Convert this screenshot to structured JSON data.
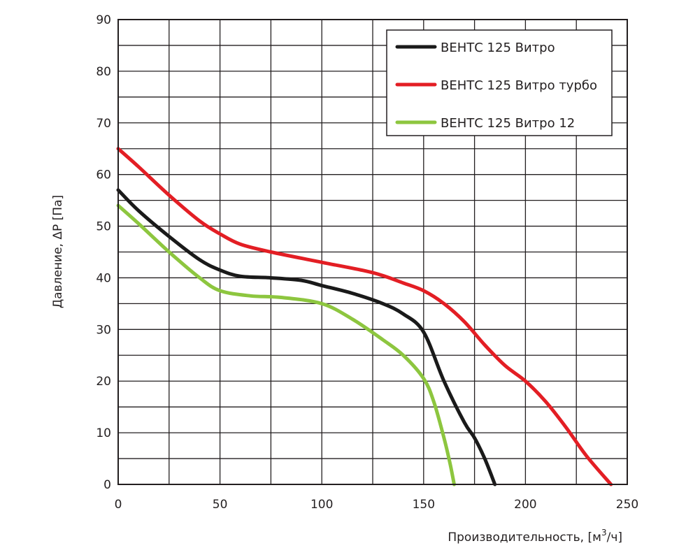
{
  "chart_data": {
    "type": "line",
    "title": "",
    "xlabel": "Производительность, [м",
    "xlabel_sup": "3",
    "xlabel_suffix": "/ч]",
    "ylabel": "Давление, ΔP [Па]",
    "xlim": [
      0,
      250
    ],
    "ylim": [
      0,
      90
    ],
    "x_ticks": [
      0,
      50,
      100,
      150,
      200,
      250
    ],
    "y_ticks": [
      0,
      10,
      20,
      30,
      40,
      50,
      60,
      70,
      80,
      90
    ],
    "x_grid_step": 25,
    "y_grid_step": 5,
    "grid": true,
    "legend_position": "top-right",
    "series": [
      {
        "name": "ВЕНТС 125 Витро",
        "color": "#1a1a1a",
        "x": [
          0,
          10,
          25,
          40,
          50,
          60,
          75,
          90,
          100,
          115,
          130,
          140,
          150,
          160,
          170,
          175,
          180,
          185
        ],
        "y": [
          57,
          53,
          48,
          43.5,
          41.5,
          40.3,
          40,
          39.5,
          38.5,
          37,
          35,
          33,
          29.5,
          20,
          12,
          9,
          5,
          0
        ]
      },
      {
        "name": "ВЕНТС 125 Витро турбо",
        "color": "#e31e24",
        "x": [
          0,
          10,
          25,
          40,
          50,
          60,
          75,
          100,
          125,
          140,
          150,
          160,
          170,
          180,
          190,
          200,
          210,
          220,
          230,
          242
        ],
        "y": [
          65,
          61.5,
          56,
          51,
          48.5,
          46.5,
          45,
          43,
          41,
          39,
          37.5,
          35,
          31.5,
          27,
          23,
          20,
          16,
          11,
          5.5,
          0
        ]
      },
      {
        "name": "ВЕНТС 125 Витро 12",
        "color": "#8dc63f",
        "x": [
          0,
          10,
          25,
          40,
          50,
          65,
          80,
          100,
          115,
          130,
          140,
          150,
          155,
          160,
          163,
          165
        ],
        "y": [
          54,
          50.5,
          45,
          40,
          37.5,
          36.5,
          36.2,
          35,
          32,
          28,
          25,
          20.5,
          16,
          9,
          4,
          0
        ]
      }
    ]
  }
}
